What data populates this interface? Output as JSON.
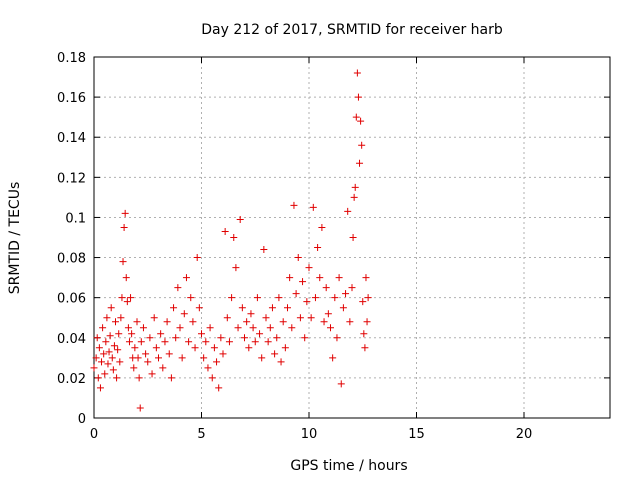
{
  "chart_data": {
    "type": "scatter",
    "title": "Day 212 of 2017, SRMTID for receiver harb",
    "xlabel": "GPS time / hours",
    "ylabel": "SRMTID / TECUs",
    "xlim": [
      0,
      24
    ],
    "ylim": [
      0,
      0.18
    ],
    "xticks": [
      "0",
      "5",
      "10",
      "15",
      "20"
    ],
    "xtick_values": [
      0,
      5,
      10,
      15,
      20
    ],
    "yticks": [
      "0",
      "0.02",
      "0.04",
      "0.06",
      "0.08",
      "0.1",
      "0.12",
      "0.14",
      "0.16",
      "0.18"
    ],
    "ytick_values": [
      0,
      0.02,
      0.04,
      0.06,
      0.08,
      0.1,
      0.12,
      0.14,
      0.16,
      0.18
    ],
    "grid": true,
    "marker": "+",
    "color": "#e00000",
    "series": [
      {
        "name": "SRMTID",
        "points": [
          [
            0.0,
            0.025
          ],
          [
            0.1,
            0.03
          ],
          [
            0.15,
            0.04
          ],
          [
            0.2,
            0.02
          ],
          [
            0.25,
            0.035
          ],
          [
            0.3,
            0.015
          ],
          [
            0.35,
            0.028
          ],
          [
            0.4,
            0.045
          ],
          [
            0.45,
            0.032
          ],
          [
            0.5,
            0.022
          ],
          [
            0.55,
            0.038
          ],
          [
            0.6,
            0.05
          ],
          [
            0.65,
            0.027
          ],
          [
            0.7,
            0.033
          ],
          [
            0.75,
            0.041
          ],
          [
            0.8,
            0.055
          ],
          [
            0.85,
            0.03
          ],
          [
            0.9,
            0.024
          ],
          [
            0.95,
            0.036
          ],
          [
            1.0,
            0.048
          ],
          [
            1.05,
            0.02
          ],
          [
            1.1,
            0.034
          ],
          [
            1.15,
            0.042
          ],
          [
            1.2,
            0.028
          ],
          [
            1.25,
            0.05
          ],
          [
            1.3,
            0.06
          ],
          [
            1.35,
            0.078
          ],
          [
            1.4,
            0.095
          ],
          [
            1.45,
            0.102
          ],
          [
            1.5,
            0.07
          ],
          [
            1.55,
            0.058
          ],
          [
            1.6,
            0.045
          ],
          [
            1.65,
            0.038
          ],
          [
            1.7,
            0.06
          ],
          [
            1.75,
            0.042
          ],
          [
            1.8,
            0.03
          ],
          [
            1.85,
            0.025
          ],
          [
            1.9,
            0.035
          ],
          [
            2.0,
            0.048
          ],
          [
            2.05,
            0.03
          ],
          [
            2.1,
            0.02
          ],
          [
            2.15,
            0.005
          ],
          [
            2.2,
            0.038
          ],
          [
            2.3,
            0.045
          ],
          [
            2.4,
            0.032
          ],
          [
            2.5,
            0.028
          ],
          [
            2.6,
            0.04
          ],
          [
            2.7,
            0.022
          ],
          [
            2.8,
            0.05
          ],
          [
            2.9,
            0.035
          ],
          [
            3.0,
            0.03
          ],
          [
            3.1,
            0.042
          ],
          [
            3.2,
            0.025
          ],
          [
            3.3,
            0.038
          ],
          [
            3.4,
            0.048
          ],
          [
            3.5,
            0.032
          ],
          [
            3.6,
            0.02
          ],
          [
            3.7,
            0.055
          ],
          [
            3.8,
            0.04
          ],
          [
            3.9,
            0.065
          ],
          [
            4.0,
            0.045
          ],
          [
            4.1,
            0.03
          ],
          [
            4.2,
            0.052
          ],
          [
            4.3,
            0.07
          ],
          [
            4.4,
            0.038
          ],
          [
            4.5,
            0.06
          ],
          [
            4.6,
            0.048
          ],
          [
            4.7,
            0.035
          ],
          [
            4.8,
            0.08
          ],
          [
            4.9,
            0.055
          ],
          [
            5.0,
            0.042
          ],
          [
            5.1,
            0.03
          ],
          [
            5.2,
            0.038
          ],
          [
            5.3,
            0.025
          ],
          [
            5.4,
            0.045
          ],
          [
            5.5,
            0.02
          ],
          [
            5.6,
            0.035
          ],
          [
            5.7,
            0.028
          ],
          [
            5.8,
            0.015
          ],
          [
            5.9,
            0.04
          ],
          [
            6.0,
            0.032
          ],
          [
            6.1,
            0.093
          ],
          [
            6.2,
            0.05
          ],
          [
            6.3,
            0.038
          ],
          [
            6.4,
            0.06
          ],
          [
            6.5,
            0.09
          ],
          [
            6.6,
            0.075
          ],
          [
            6.7,
            0.045
          ],
          [
            6.8,
            0.099
          ],
          [
            6.9,
            0.055
          ],
          [
            7.0,
            0.04
          ],
          [
            7.1,
            0.048
          ],
          [
            7.2,
            0.035
          ],
          [
            7.3,
            0.052
          ],
          [
            7.4,
            0.045
          ],
          [
            7.5,
            0.038
          ],
          [
            7.6,
            0.06
          ],
          [
            7.7,
            0.042
          ],
          [
            7.8,
            0.03
          ],
          [
            7.9,
            0.084
          ],
          [
            8.0,
            0.05
          ],
          [
            8.1,
            0.038
          ],
          [
            8.2,
            0.045
          ],
          [
            8.3,
            0.055
          ],
          [
            8.4,
            0.032
          ],
          [
            8.5,
            0.04
          ],
          [
            8.6,
            0.06
          ],
          [
            8.7,
            0.028
          ],
          [
            8.8,
            0.048
          ],
          [
            8.9,
            0.035
          ],
          [
            9.0,
            0.055
          ],
          [
            9.1,
            0.07
          ],
          [
            9.2,
            0.045
          ],
          [
            9.3,
            0.106
          ],
          [
            9.4,
            0.062
          ],
          [
            9.5,
            0.08
          ],
          [
            9.6,
            0.05
          ],
          [
            9.7,
            0.068
          ],
          [
            9.8,
            0.04
          ],
          [
            9.9,
            0.058
          ],
          [
            10.0,
            0.075
          ],
          [
            10.1,
            0.05
          ],
          [
            10.2,
            0.105
          ],
          [
            10.3,
            0.06
          ],
          [
            10.4,
            0.085
          ],
          [
            10.5,
            0.07
          ],
          [
            10.6,
            0.095
          ],
          [
            10.7,
            0.048
          ],
          [
            10.8,
            0.065
          ],
          [
            10.9,
            0.052
          ],
          [
            11.0,
            0.045
          ],
          [
            11.1,
            0.03
          ],
          [
            11.2,
            0.06
          ],
          [
            11.3,
            0.04
          ],
          [
            11.4,
            0.07
          ],
          [
            11.5,
            0.017
          ],
          [
            11.6,
            0.055
          ],
          [
            11.7,
            0.062
          ],
          [
            11.8,
            0.103
          ],
          [
            11.9,
            0.048
          ],
          [
            12.0,
            0.065
          ],
          [
            12.05,
            0.09
          ],
          [
            12.1,
            0.11
          ],
          [
            12.15,
            0.115
          ],
          [
            12.2,
            0.15
          ],
          [
            12.25,
            0.172
          ],
          [
            12.3,
            0.16
          ],
          [
            12.35,
            0.127
          ],
          [
            12.4,
            0.148
          ],
          [
            12.45,
            0.136
          ],
          [
            12.5,
            0.058
          ],
          [
            12.55,
            0.042
          ],
          [
            12.6,
            0.035
          ],
          [
            12.65,
            0.07
          ],
          [
            12.7,
            0.048
          ],
          [
            12.75,
            0.06
          ]
        ]
      }
    ]
  }
}
